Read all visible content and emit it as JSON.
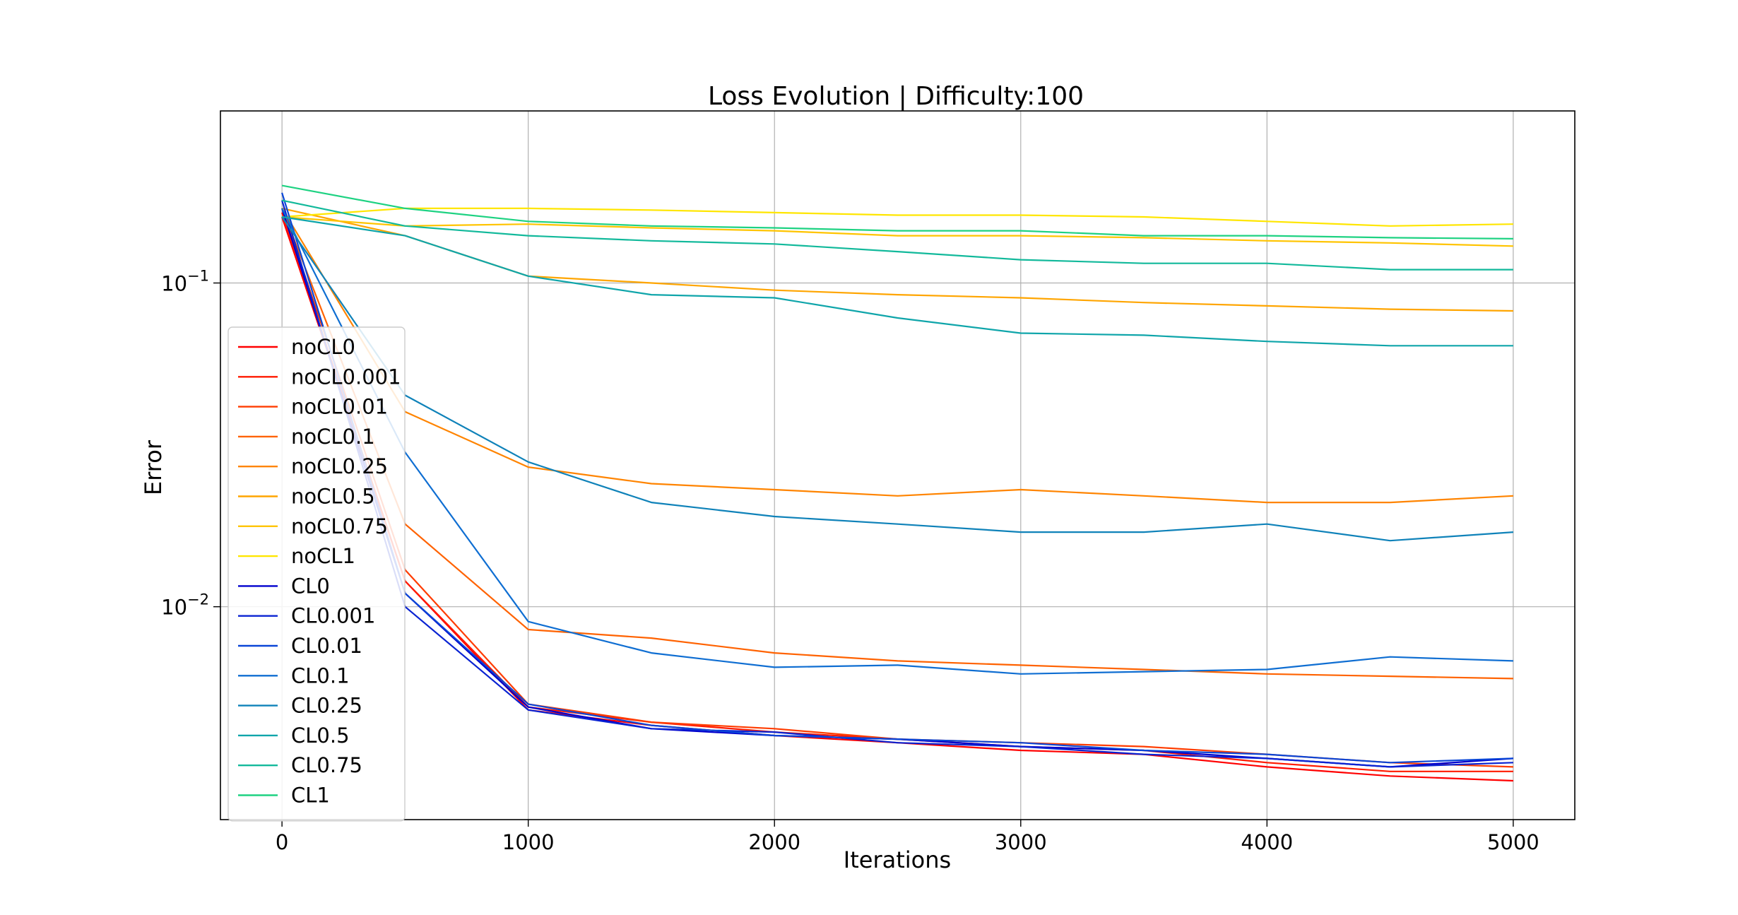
{
  "chart_data": {
    "type": "line",
    "title": "Loss Evolution | Difficulty:100",
    "xlabel": "Iterations",
    "ylabel": "Error",
    "xlim": [
      -250,
      5250
    ],
    "ylim": [
      0.0022,
      0.34
    ],
    "yscale": "log",
    "grid": true,
    "legend_position": "lower-left",
    "x_ticks": [
      {
        "value": 0,
        "label": "0"
      },
      {
        "value": 1000,
        "label": "1000"
      },
      {
        "value": 2000,
        "label": "2000"
      },
      {
        "value": 3000,
        "label": "3000"
      },
      {
        "value": 4000,
        "label": "4000"
      },
      {
        "value": 5000,
        "label": "5000"
      }
    ],
    "y_ticks": [
      {
        "value": 0.01,
        "base": "10",
        "exp": "−2"
      },
      {
        "value": 0.1,
        "base": "10",
        "exp": "−1"
      }
    ],
    "x": [
      0,
      500,
      1000,
      1500,
      2000,
      2500,
      3000,
      3500,
      4000,
      4500,
      5000
    ],
    "series": [
      {
        "name": "noCL0",
        "color": "#ff0000",
        "values": [
          0.16,
          0.012,
          0.0048,
          0.0043,
          0.004,
          0.0038,
          0.0036,
          0.0035,
          0.0032,
          0.003,
          0.0029
        ]
      },
      {
        "name": "noCL0.001",
        "color": "#ff1a00",
        "values": [
          0.165,
          0.012,
          0.0049,
          0.0044,
          0.0041,
          0.0039,
          0.0037,
          0.0036,
          0.0033,
          0.0031,
          0.0031
        ]
      },
      {
        "name": "noCL0.01",
        "color": "#ff3c00",
        "values": [
          0.17,
          0.013,
          0.005,
          0.0044,
          0.0042,
          0.0039,
          0.0038,
          0.0037,
          0.0035,
          0.0033,
          0.0032
        ]
      },
      {
        "name": "noCL0.1",
        "color": "#ff6200",
        "values": [
          0.17,
          0.018,
          0.0085,
          0.008,
          0.0072,
          0.0068,
          0.0066,
          0.0064,
          0.0062,
          0.0061,
          0.006
        ]
      },
      {
        "name": "noCL0.25",
        "color": "#ff8400",
        "values": [
          0.17,
          0.04,
          0.027,
          0.024,
          0.023,
          0.022,
          0.023,
          0.022,
          0.021,
          0.021,
          0.022
        ]
      },
      {
        "name": "noCL0.5",
        "color": "#ffa500",
        "values": [
          0.17,
          0.14,
          0.105,
          0.1,
          0.095,
          0.092,
          0.09,
          0.087,
          0.085,
          0.083,
          0.082
        ]
      },
      {
        "name": "noCL0.75",
        "color": "#ffc400",
        "values": [
          0.16,
          0.15,
          0.152,
          0.148,
          0.145,
          0.14,
          0.14,
          0.138,
          0.135,
          0.133,
          0.13
        ]
      },
      {
        "name": "noCL1",
        "color": "#ffe600",
        "values": [
          0.16,
          0.17,
          0.17,
          0.168,
          0.165,
          0.162,
          0.162,
          0.16,
          0.155,
          0.15,
          0.152
        ]
      },
      {
        "name": "CL0",
        "color": "#0000cd",
        "values": [
          0.17,
          0.011,
          0.0049,
          0.0042,
          0.004,
          0.0039,
          0.0037,
          0.0036,
          0.0034,
          0.0032,
          0.0034
        ]
      },
      {
        "name": "CL0.001",
        "color": "#0a23d2",
        "values": [
          0.18,
          0.01,
          0.0048,
          0.0042,
          0.0041,
          0.0038,
          0.0037,
          0.0035,
          0.0034,
          0.0032,
          0.0033
        ]
      },
      {
        "name": "CL0.01",
        "color": "#0a46d7",
        "values": [
          0.19,
          0.011,
          0.005,
          0.0043,
          0.004,
          0.0039,
          0.0038,
          0.0036,
          0.0035,
          0.0033,
          0.0034
        ]
      },
      {
        "name": "CL0.1",
        "color": "#0f6ed2",
        "values": [
          0.17,
          0.03,
          0.009,
          0.0072,
          0.0065,
          0.0066,
          0.0062,
          0.0063,
          0.0064,
          0.007,
          0.0068
        ]
      },
      {
        "name": "CL0.25",
        "color": "#0f82b9",
        "values": [
          0.16,
          0.045,
          0.028,
          0.021,
          0.019,
          0.018,
          0.017,
          0.017,
          0.018,
          0.016,
          0.017
        ]
      },
      {
        "name": "CL0.5",
        "color": "#0fa5aa",
        "values": [
          0.16,
          0.14,
          0.105,
          0.092,
          0.09,
          0.078,
          0.07,
          0.069,
          0.066,
          0.064,
          0.064
        ]
      },
      {
        "name": "CL0.75",
        "color": "#12b99b",
        "values": [
          0.18,
          0.15,
          0.14,
          0.135,
          0.132,
          0.125,
          0.118,
          0.115,
          0.115,
          0.11,
          0.11
        ]
      },
      {
        "name": "CL1",
        "color": "#1ed282",
        "values": [
          0.2,
          0.17,
          0.155,
          0.15,
          0.148,
          0.145,
          0.145,
          0.14,
          0.14,
          0.138,
          0.137
        ]
      }
    ]
  }
}
